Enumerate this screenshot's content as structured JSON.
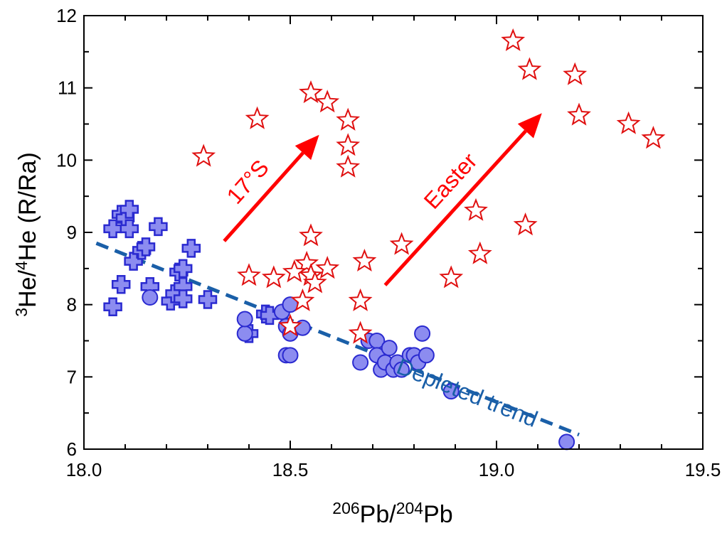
{
  "chart_data": {
    "type": "scatter",
    "xlabel": {
      "sup1": "206",
      "base1": "Pb/",
      "sup2": "204",
      "base2": "Pb"
    },
    "ylabel": {
      "sup1": "3",
      "base1": "He/",
      "sup2": "4",
      "base2": "He (R/Ra)"
    },
    "xlim": [
      18.0,
      19.5
    ],
    "ylim": [
      6,
      12
    ],
    "xticks": [
      18.0,
      18.5,
      19.0,
      19.5
    ],
    "xtick_labels": [
      "18.0",
      "18.5",
      "19.0",
      "19.5"
    ],
    "yticks": [
      6,
      7,
      8,
      9,
      10,
      11,
      12
    ],
    "ytick_labels": [
      "6",
      "7",
      "8",
      "9",
      "10",
      "11",
      "12"
    ],
    "grid": false,
    "colors": {
      "blue_fill": "#8c8cf0",
      "blue_edge": "#2a2ad0",
      "star": "#e01010",
      "arrow": "#ff0000",
      "trend": "#1a5fa8"
    },
    "series": [
      {
        "marker": "cross",
        "points": [
          [
            18.07,
            9.05
          ],
          [
            18.09,
            9.25
          ],
          [
            18.1,
            9.2
          ],
          [
            18.11,
            9.32
          ],
          [
            18.11,
            9.05
          ],
          [
            18.12,
            8.6
          ],
          [
            18.14,
            8.75
          ],
          [
            18.15,
            8.8
          ],
          [
            18.18,
            9.08
          ],
          [
            18.09,
            8.28
          ],
          [
            18.16,
            8.25
          ],
          [
            18.07,
            7.97
          ],
          [
            18.21,
            8.05
          ],
          [
            18.22,
            8.15
          ],
          [
            18.23,
            8.45
          ],
          [
            18.24,
            8.5
          ],
          [
            18.24,
            8.25
          ],
          [
            18.24,
            8.08
          ],
          [
            18.26,
            8.78
          ],
          [
            18.3,
            8.07
          ],
          [
            18.4,
            7.6
          ],
          [
            18.44,
            7.87
          ],
          [
            18.45,
            7.85
          ]
        ]
      },
      {
        "marker": "circle",
        "points": [
          [
            18.16,
            8.1
          ],
          [
            18.39,
            7.6
          ],
          [
            18.39,
            7.8
          ],
          [
            18.48,
            7.9
          ],
          [
            18.49,
            7.7
          ],
          [
            18.5,
            7.6
          ],
          [
            18.5,
            8.0
          ],
          [
            18.49,
            7.3
          ],
          [
            18.5,
            7.3
          ],
          [
            18.53,
            7.68
          ],
          [
            18.67,
            7.2
          ],
          [
            18.69,
            7.5
          ],
          [
            18.71,
            7.5
          ],
          [
            18.71,
            7.3
          ],
          [
            18.72,
            7.1
          ],
          [
            18.73,
            7.2
          ],
          [
            18.74,
            7.4
          ],
          [
            18.75,
            7.1
          ],
          [
            18.76,
            7.2
          ],
          [
            18.77,
            7.1
          ],
          [
            18.79,
            7.3
          ],
          [
            18.8,
            7.3
          ],
          [
            18.81,
            7.2
          ],
          [
            18.82,
            7.6
          ],
          [
            18.83,
            7.3
          ],
          [
            18.89,
            6.8
          ],
          [
            19.17,
            6.1
          ]
        ]
      },
      {
        "marker": "star",
        "points": [
          [
            18.29,
            10.05
          ],
          [
            18.42,
            10.57
          ],
          [
            18.55,
            10.93
          ],
          [
            18.59,
            10.8
          ],
          [
            18.64,
            10.55
          ],
          [
            18.64,
            10.2
          ],
          [
            18.64,
            9.9
          ],
          [
            18.55,
            8.95
          ],
          [
            18.54,
            8.57
          ],
          [
            18.4,
            8.4
          ],
          [
            18.46,
            8.37
          ],
          [
            18.51,
            8.45
          ],
          [
            18.55,
            8.4
          ],
          [
            18.56,
            8.3
          ],
          [
            18.59,
            8.5
          ],
          [
            18.53,
            8.05
          ],
          [
            18.5,
            7.7
          ],
          [
            18.67,
            7.6
          ],
          [
            18.67,
            8.05
          ],
          [
            18.68,
            8.6
          ],
          [
            18.77,
            8.83
          ],
          [
            18.89,
            8.37
          ],
          [
            18.95,
            9.3
          ],
          [
            18.96,
            8.7
          ],
          [
            19.07,
            9.1
          ],
          [
            19.04,
            11.65
          ],
          [
            19.08,
            11.25
          ],
          [
            19.19,
            11.18
          ],
          [
            19.2,
            10.62
          ],
          [
            19.32,
            10.5
          ],
          [
            19.38,
            10.3
          ]
        ]
      }
    ],
    "trend_line": {
      "label": "Depleted trend",
      "x": [
        18.03,
        19.2
      ],
      "y": [
        8.85,
        6.2
      ]
    },
    "arrows": [
      {
        "label": "17°S",
        "from": [
          18.34,
          8.88
        ],
        "to": [
          18.57,
          10.35
        ]
      },
      {
        "label": "Easter",
        "from": [
          18.73,
          8.27
        ],
        "to": [
          19.11,
          10.65
        ]
      }
    ]
  }
}
